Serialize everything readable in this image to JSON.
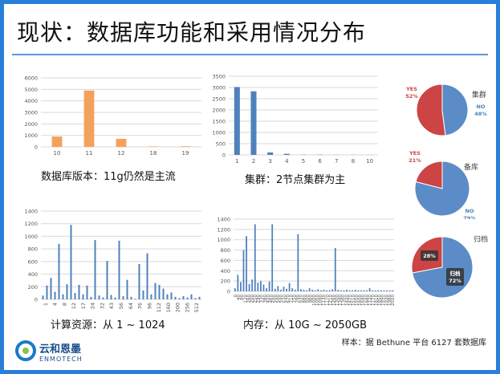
{
  "title": "现状：数据库功能和采用情况分布",
  "footnote": "样本：据 Bethune 平台 6127 套数据库",
  "logo": {
    "name": "云和恩墨",
    "en": "ENMOTECH"
  },
  "colors": {
    "orange": "#f4a15b",
    "blue": "#4f81bd",
    "red": "#cc4444",
    "pieBlue": "#5b8cc8"
  },
  "chart_data": [
    {
      "type": "bar",
      "caption": "数据库版本：11g仍然是主流",
      "categories": [
        "10",
        "11",
        "12",
        "18",
        "19"
      ],
      "values": [
        900,
        4900,
        700,
        40,
        50
      ],
      "ylim": [
        0,
        6000
      ],
      "yticks": [
        0,
        1000,
        2000,
        3000,
        4000,
        5000,
        6000
      ],
      "color": "#f4a15b",
      "grid": true
    },
    {
      "type": "bar",
      "caption": "集群：2节点集群为主",
      "categories": [
        "1",
        "2",
        "3",
        "4",
        "5",
        "6",
        "7",
        "8",
        "10"
      ],
      "values": [
        3020,
        2830,
        110,
        50,
        10,
        10,
        5,
        5,
        5
      ],
      "ylim": [
        0,
        3500
      ],
      "yticks": [
        0,
        500,
        1000,
        1500,
        2000,
        2500,
        3000,
        3500
      ],
      "color": "#4f81bd",
      "grid": true
    },
    {
      "type": "bar",
      "caption": "计算资源：从 1 ~ 1024",
      "xticks": [
        "1",
        "4",
        "8",
        "12",
        "17",
        "24",
        "32",
        "43",
        "56",
        "64",
        "76",
        "96",
        "112",
        "160",
        "200",
        "256",
        "512"
      ],
      "values": [
        60,
        220,
        340,
        120,
        880,
        80,
        240,
        1180,
        100,
        230,
        80,
        220,
        40,
        940,
        60,
        30,
        610,
        70,
        30,
        930,
        50,
        310,
        40,
        10,
        560,
        140,
        730,
        80,
        260,
        230,
        170,
        80,
        110,
        40,
        20,
        50,
        30,
        80,
        20,
        40
      ],
      "ylim": [
        0,
        1400
      ],
      "yticks": [
        0,
        200,
        400,
        600,
        800,
        1000,
        1200,
        1400
      ],
      "color": "#4f81bd",
      "grid": true
    },
    {
      "type": "bar",
      "caption": "内存：从 10G ~ 2050GB",
      "xticks": [
        "0",
        "40",
        "80",
        "120",
        "160",
        "200",
        "250",
        "290",
        "330",
        "380",
        "420",
        "460",
        "500",
        "540",
        "590",
        "630",
        "670",
        "710",
        "750",
        "790",
        "830",
        "880",
        "920",
        "960",
        "1000",
        "1050",
        "1090",
        "1130",
        "1170",
        "1210",
        "1260",
        "1300",
        "1340",
        "1380",
        "1420",
        "1470",
        "1510",
        "1550",
        "1600",
        "1640",
        "1680",
        "1720",
        "1770",
        "1810",
        "1850",
        "1890",
        "1930",
        "1980",
        "2020"
      ],
      "values": [
        60,
        320,
        180,
        800,
        1070,
        140,
        230,
        1300,
        170,
        200,
        130,
        60,
        190,
        1300,
        50,
        100,
        30,
        90,
        50,
        160,
        60,
        30,
        1110,
        40,
        30,
        20,
        60,
        30,
        20,
        40,
        20,
        30,
        20,
        20,
        40,
        840,
        30,
        20,
        20,
        30,
        20,
        20,
        30,
        20,
        20,
        20,
        20,
        60,
        20,
        20,
        20,
        20,
        20,
        20,
        20,
        20
      ],
      "ylim": [
        0,
        1400
      ],
      "yticks": [
        0,
        200,
        400,
        600,
        800,
        1000,
        1200,
        1400
      ],
      "color": "#4f81bd",
      "grid": true
    },
    {
      "type": "pie",
      "title": "集群",
      "slices": [
        {
          "label": "YES",
          "pct": "52%",
          "value": 52,
          "color": "#cc4444"
        },
        {
          "label": "NO",
          "pct": "48%",
          "value": 48,
          "color": "#5b8cc8"
        }
      ]
    },
    {
      "type": "pie",
      "title": "备库",
      "slices": [
        {
          "label": "YES",
          "pct": "21%",
          "value": 21,
          "color": "#cc4444"
        },
        {
          "label": "NO",
          "pct": "79%",
          "value": 79,
          "color": "#5b8cc8"
        }
      ]
    },
    {
      "type": "pie",
      "title": "归档",
      "slices": [
        {
          "label": "",
          "pct": "28%",
          "value": 28,
          "color": "#cc4444"
        },
        {
          "label": "归档",
          "pct": "72%",
          "value": 72,
          "color": "#5b8cc8"
        }
      ]
    }
  ]
}
